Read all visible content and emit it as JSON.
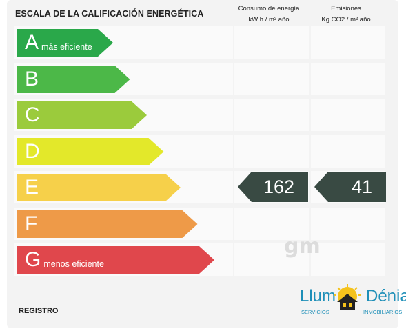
{
  "title": "ESCALA DE LA CALIFICACIÓN ENERGÉTICA",
  "consumo": {
    "label": "Consumo de energía",
    "unit": "kW h / m² año"
  },
  "emisiones": {
    "label": "Emisiones",
    "unit": "Kg CO2 / m² año"
  },
  "scale": [
    {
      "letter": "A",
      "sublabel": "más eficiente",
      "color": "#2aa84a"
    },
    {
      "letter": "B",
      "sublabel": "",
      "color": "#4cb848"
    },
    {
      "letter": "C",
      "sublabel": "",
      "color": "#9bcb3c"
    },
    {
      "letter": "D",
      "sublabel": "",
      "color": "#e3e82a"
    },
    {
      "letter": "E",
      "sublabel": "",
      "color": "#f6d04a"
    },
    {
      "letter": "F",
      "sublabel": "",
      "color": "#ee9a48"
    },
    {
      "letter": "G",
      "sublabel": "menos eficiente",
      "color": "#e0474c"
    }
  ],
  "rating": {
    "class": "E",
    "consumo_value": "162",
    "emisiones_value": "41",
    "color": "#394a43"
  },
  "footer": {
    "registro_label": "REGISTRO"
  },
  "watermark": "gm",
  "logo": {
    "name_left": "Llum",
    "name_right": "Dénia",
    "tag_left": "SERVICIOS",
    "tag_right": "INMOBILIARIOS"
  }
}
